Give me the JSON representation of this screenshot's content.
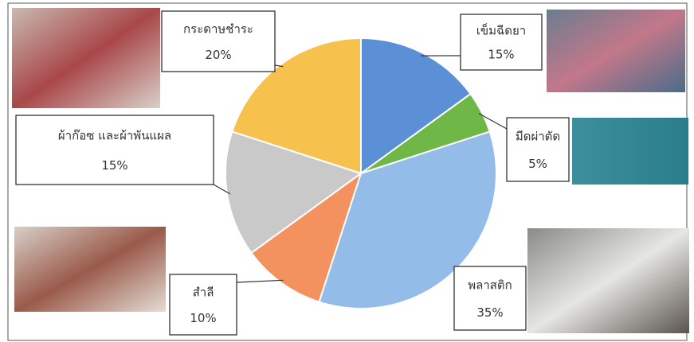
{
  "chart_data": {
    "type": "pie",
    "categories": [
      "เข็มฉีดยา",
      "มีดผ่าตัด",
      "พลาสติก",
      "สำลี",
      "ผ้าก๊อซ และผ้าพันแผล",
      "กระดาษชำระ"
    ],
    "values": [
      15,
      5,
      35,
      10,
      15,
      20
    ],
    "value_labels": [
      "15%",
      "5%",
      "35%",
      "10%",
      "15%",
      "20%"
    ],
    "colors": [
      "#5b8fd6",
      "#6fb848",
      "#93bde8",
      "#f4925f",
      "#c9c9c9",
      "#f6c24d"
    ]
  }
}
